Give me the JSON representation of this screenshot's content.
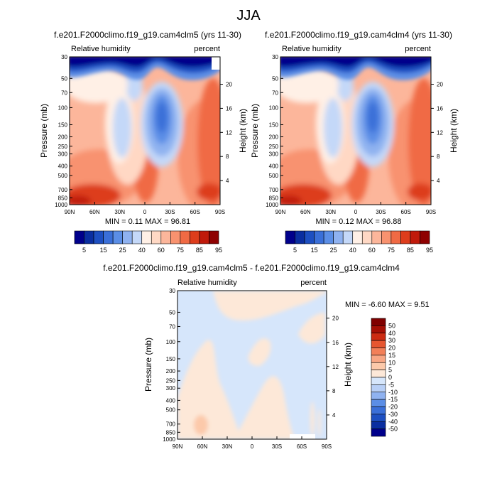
{
  "colors": {
    "abs_scale": [
      "#00008b",
      "#0a2ea0",
      "#1d4fc1",
      "#3a6fd8",
      "#5b8ee6",
      "#8fb2f0",
      "#c4d8f8",
      "#fff0e6",
      "#ffd8c4",
      "#fcb69b",
      "#f8926f",
      "#f06a44",
      "#dd3d1c",
      "#c01a0b",
      "#8e0101"
    ],
    "diff_scale": [
      "#00008b",
      "#0a2ea0",
      "#1d4fc1",
      "#3a6fd8",
      "#5b8ee6",
      "#8fb2f0",
      "#b8cff6",
      "#d6e6fb",
      "#fde8d8",
      "#fcc9aa",
      "#f8a684",
      "#f27f58",
      "#e65630",
      "#cc2b12",
      "#a50f05",
      "#800000"
    ]
  },
  "chart_data": [
    {
      "type": "heatmap",
      "title": "f.e201.F2000climo.f19_g19.cam4clm5 (yrs 11-30)",
      "left_label": "Relative humidity",
      "right_label": "percent",
      "ylabel": "Pressure (mb)",
      "ylabel_right": "Height (km)",
      "x_ticks": [
        "90N",
        "60N",
        "30N",
        "0",
        "30S",
        "60S",
        "90S"
      ],
      "y_ticks": [
        "30",
        "50",
        "70",
        "100",
        "150",
        "200",
        "250",
        "300",
        "400",
        "500",
        "700",
        "850",
        "1000"
      ],
      "y2_ticks": [
        "20",
        "16",
        "12",
        "8",
        "4"
      ],
      "stats": "MIN =   0.11   MAX =   96.81",
      "colorbar_labels": [
        "5",
        "15",
        "25",
        "40",
        "60",
        "75",
        "85",
        "95"
      ]
    },
    {
      "type": "heatmap",
      "title": "f.e201.F2000climo.f19_g19.cam4clm4 (yrs 11-30)",
      "left_label": "Relative humidity",
      "right_label": "percent",
      "ylabel": "Pressure (mb)",
      "ylabel_right": "Height (km)",
      "x_ticks": [
        "90N",
        "60N",
        "30N",
        "0",
        "30S",
        "60S",
        "90S"
      ],
      "y_ticks": [
        "30",
        "50",
        "70",
        "100",
        "150",
        "200",
        "250",
        "300",
        "400",
        "500",
        "700",
        "850",
        "1000"
      ],
      "y2_ticks": [
        "20",
        "16",
        "12",
        "8",
        "4"
      ],
      "stats": "MIN =   0.12   MAX =   96.88",
      "colorbar_labels": [
        "5",
        "15",
        "25",
        "40",
        "60",
        "75",
        "85",
        "95"
      ]
    },
    {
      "type": "heatmap",
      "title": "f.e201.F2000climo.f19_g19.cam4clm5 - f.e201.F2000climo.f19_g19.cam4clm4",
      "left_label": "Relative humidity",
      "right_label": "percent",
      "ylabel": "Pressure (mb)",
      "ylabel_right": "Height (km)",
      "x_ticks": [
        "90N",
        "60N",
        "30N",
        "0",
        "30S",
        "60S",
        "90S"
      ],
      "y_ticks": [
        "30",
        "50",
        "70",
        "100",
        "150",
        "200",
        "250",
        "300",
        "400",
        "500",
        "700",
        "850",
        "1000"
      ],
      "y2_ticks": [
        "20",
        "16",
        "12",
        "8",
        "4"
      ],
      "stats": "MIN =   -6.60   MAX =     9.51",
      "colorbar_labels": [
        "50",
        "40",
        "30",
        "20",
        "15",
        "10",
        "5",
        "0",
        "-5",
        "-10",
        "-15",
        "-20",
        "-30",
        "-40",
        "-50"
      ]
    }
  ],
  "figure": {
    "main_title": "JJA"
  }
}
